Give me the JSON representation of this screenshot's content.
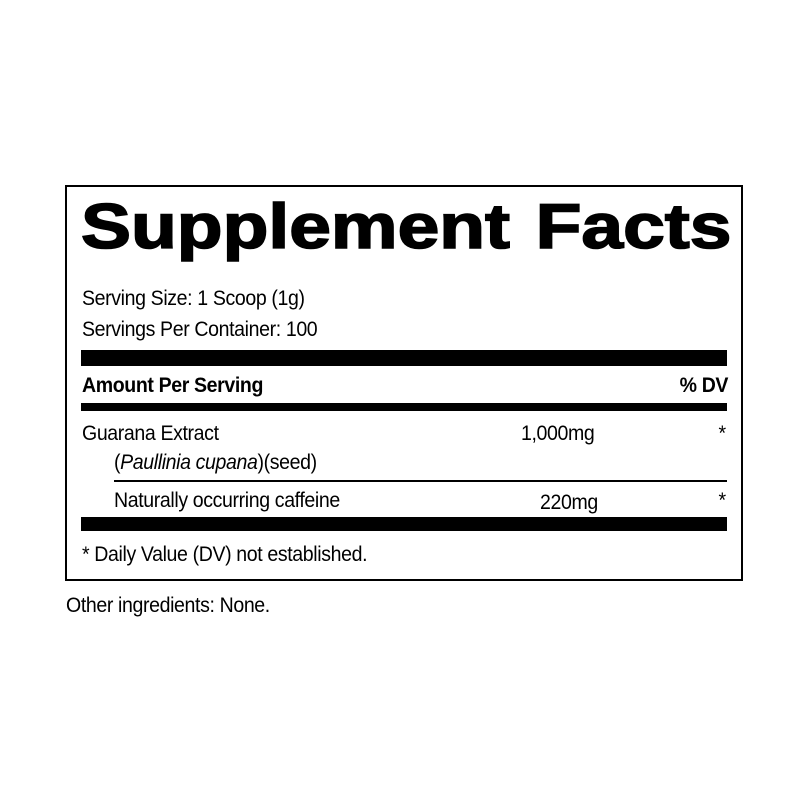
{
  "title": "Supplement Facts",
  "serving_size": "Serving Size: 1 Scoop (1g)",
  "servings_per_container": "Servings Per Container: 100",
  "header": {
    "amount_per_serving": "Amount Per Serving",
    "dv": "% DV"
  },
  "ingredients": [
    {
      "name": "Guarana Extract",
      "source_italic": "Paullinia cupana",
      "source_open": "(",
      "source_close": ")(seed)",
      "amount": "1,000mg",
      "dv": "*"
    },
    {
      "name": "Naturally occurring caffeine",
      "amount": "220mg",
      "dv": "*"
    }
  ],
  "footnote": "* Daily Value (DV) not established.",
  "other_ingredients": "Other ingredients: None."
}
